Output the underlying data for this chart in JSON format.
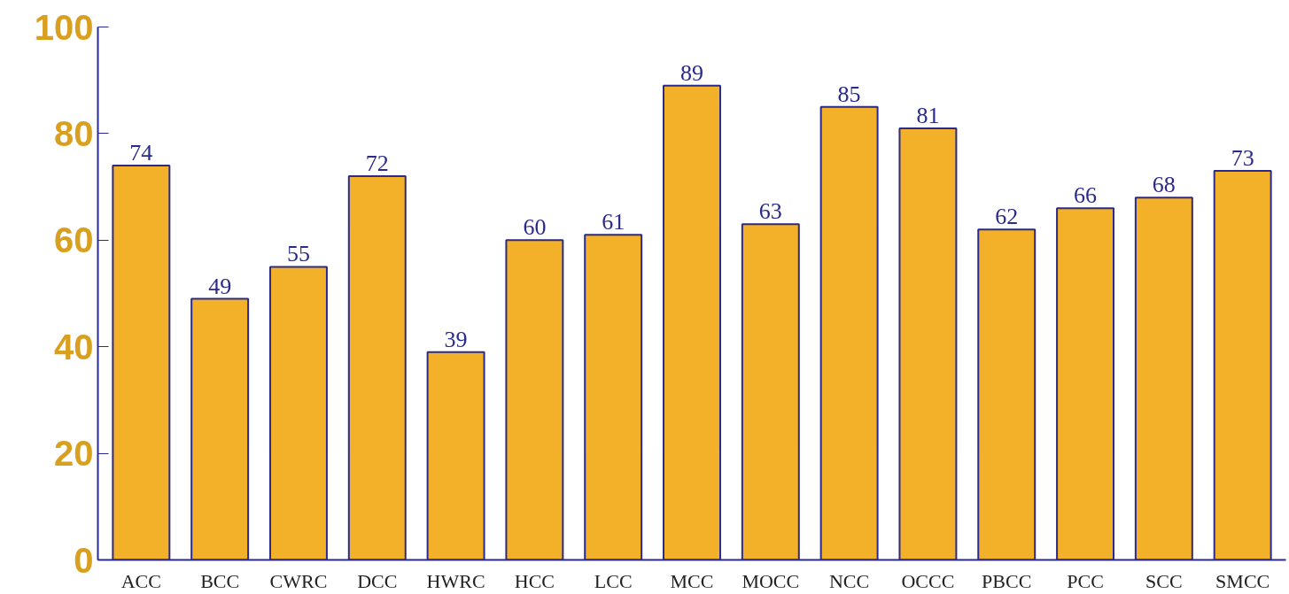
{
  "chart_data": {
    "type": "bar",
    "categories": [
      "ACC",
      "BCC",
      "CWRC",
      "DCC",
      "HWRC",
      "HCC",
      "LCC",
      "MCC",
      "MOCC",
      "NCC",
      "OCCC",
      "PBCC",
      "PCC",
      "SCC",
      "SMCC"
    ],
    "values": [
      74,
      49,
      55,
      72,
      39,
      60,
      61,
      89,
      63,
      85,
      81,
      62,
      66,
      68,
      73
    ],
    "color": "#f2b128",
    "ylim": [
      0,
      100
    ],
    "yticks": [
      0,
      20,
      40,
      60,
      80,
      100
    ],
    "data_labels": true,
    "grid": false
  }
}
